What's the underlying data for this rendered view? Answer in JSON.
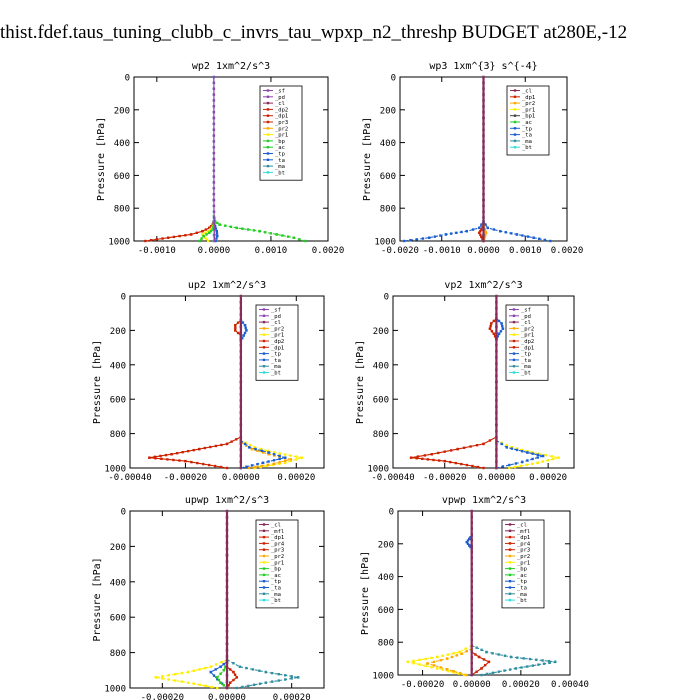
{
  "page_title": "thist.fdef.taus_tuning_clubb_c_invrs_tau_wpxp_n2_threshp  BUDGET at280E,-12",
  "colors": {
    "_sf": "#8e44ad",
    "_pd": "#8e44ad",
    "_cl": "#8b2b5a",
    "_mfl": "#8b2b5a",
    "_dp1": "#cc2200",
    "_dp2": "#cc2200",
    "_pr4": "#cc2200",
    "_pr3": "#cc2200",
    "_pr2": "#ffaa00",
    "_pr1": "#ffee00",
    "_bp": "#22cc22",
    "_ac": "#22cc22",
    "_tp": "#1a5fd1",
    "_ta": "#1a5fd1",
    "_ma": "#2f8fa0",
    "_bt": "#33dddd"
  },
  "chart_data": [
    {
      "type": "line",
      "title": "wp2  1xm^2/s^3",
      "ylabel": "Pressure  [hPa]",
      "xlim": [
        -0.0014,
        0.002
      ],
      "ylim": [
        1000,
        0
      ],
      "xticks": [
        -0.001,
        0,
        0.001,
        0.002
      ],
      "xtick_labels": [
        "-0.0010",
        "0.0000",
        "0.0010",
        "0.0020"
      ],
      "yticks": [
        0,
        200,
        400,
        600,
        800,
        1000
      ],
      "yticks_labels": [
        "0",
        "200",
        "400",
        "600",
        "800",
        "1000"
      ],
      "legend": [
        "_sf",
        "_pd",
        "_cl",
        "_dp2",
        "_dp1",
        "_pr3",
        "_pr2",
        "_pr1",
        "_bp",
        "_ac",
        "_tp",
        "_ta",
        "_ma",
        "_bt"
      ],
      "legend_position": "top-right",
      "series": [
        {
          "name": "_bp",
          "x": [
            0,
            2e-05,
            0.0001,
            0.0004,
            0.0008,
            0.0011,
            0.0014,
            0.0016
          ],
          "y": [
            850,
            880,
            900,
            920,
            940,
            960,
            980,
            1000
          ]
        },
        {
          "name": "_dp1",
          "x": [
            0,
            -2e-05,
            -8e-05,
            -0.0002,
            -0.0004,
            -0.0008,
            -0.0012
          ],
          "y": [
            880,
            900,
            920,
            940,
            960,
            980,
            1000
          ]
        },
        {
          "name": "_pr1",
          "x": [
            0,
            -3e-05,
            -0.0001,
            -0.0002,
            -0.00015,
            -0.0001
          ],
          "y": [
            900,
            920,
            940,
            960,
            980,
            1000
          ]
        },
        {
          "name": "_ac",
          "x": [
            0,
            -2e-05,
            -8e-05,
            -0.00018,
            -0.00025
          ],
          "y": [
            900,
            930,
            950,
            970,
            1000
          ]
        },
        {
          "name": "_tp",
          "x": [
            0,
            2e-05,
            5e-05,
            6e-05,
            3e-05
          ],
          "y": [
            880,
            910,
            940,
            970,
            1000
          ]
        },
        {
          "name": "_bt",
          "x": [
            0,
            0,
            0,
            0,
            0
          ],
          "y": [
            0,
            250,
            500,
            750,
            1000
          ]
        },
        {
          "name": "_sf",
          "x": [
            0,
            0,
            0,
            0,
            1e-05
          ],
          "y": [
            0,
            250,
            500,
            750,
            1000
          ]
        }
      ]
    },
    {
      "type": "line",
      "title": "wp3  1xm^{3} s^{-4}",
      "ylabel": "Pressure  [hPa]",
      "xlim": [
        -0.002,
        0.002
      ],
      "ylim": [
        1000,
        0
      ],
      "xticks": [
        -0.002,
        -0.001,
        0,
        0.001,
        0.002
      ],
      "xtick_labels": [
        "-0.0020",
        "-0.0010",
        "0.0000",
        "0.0010",
        "0.0020"
      ],
      "yticks": [
        0,
        200,
        400,
        600,
        800,
        1000
      ],
      "yticks_labels": [
        "0",
        "200",
        "400",
        "600",
        "800",
        "1000"
      ],
      "legend": [
        "_cl",
        "_dp1",
        "_pr2",
        "_pr1",
        "_bp1",
        "_ac",
        "_tp",
        "_ta",
        "_ma",
        "_bt"
      ],
      "legend_position": "top-right",
      "series": [
        {
          "name": "_ta",
          "x": [
            0,
            -0.0001,
            -0.0004,
            -0.0009,
            -0.0013,
            -0.0019
          ],
          "y": [
            880,
            920,
            940,
            960,
            980,
            1000
          ]
        },
        {
          "name": "_tp",
          "x": [
            0,
            0.0001,
            0.0004,
            0.0008,
            0.0012,
            0.0016
          ],
          "y": [
            880,
            920,
            940,
            960,
            980,
            1000
          ]
        },
        {
          "name": "_dp1",
          "x": [
            0,
            -5e-05,
            -0.0001,
            -5e-05,
            0
          ],
          "y": [
            900,
            930,
            950,
            975,
            1000
          ]
        },
        {
          "name": "_pr2",
          "x": [
            0,
            3e-05,
            6e-05,
            3e-05,
            0
          ],
          "y": [
            900,
            930,
            950,
            975,
            1000
          ]
        },
        {
          "name": "_bt",
          "x": [
            0,
            0,
            0,
            0,
            0
          ],
          "y": [
            0,
            250,
            500,
            750,
            1000
          ]
        },
        {
          "name": "_cl",
          "x": [
            0,
            0,
            0,
            0,
            0
          ],
          "y": [
            0,
            250,
            500,
            750,
            1000
          ]
        }
      ]
    },
    {
      "type": "line",
      "title": "up2  1xm^2/s^3",
      "ylabel": "Pressure  [hPa]",
      "xlim": [
        -0.0004,
        0.0003
      ],
      "ylim": [
        1000,
        0
      ],
      "xticks": [
        -0.0004,
        -0.0002,
        0,
        0.0002
      ],
      "xtick_labels": [
        "-0.00040",
        "-0.00020",
        "0.00000",
        "0.00020"
      ],
      "yticks": [
        0,
        200,
        400,
        600,
        800,
        1000
      ],
      "yticks_labels": [
        "0",
        "200",
        "400",
        "600",
        "800",
        "1000"
      ],
      "legend": [
        "_sf",
        "_pd",
        "_cl",
        "_pr2",
        "_pr1",
        "_dp2",
        "_dp1",
        "_tp",
        "_ta",
        "_ma",
        "_bt"
      ],
      "legend_position": "top-right",
      "series": [
        {
          "name": "_dp1",
          "x": [
            0,
            -5e-05,
            -0.00015,
            -0.00025,
            -0.00033,
            -0.0002,
            -5e-05
          ],
          "y": [
            820,
            860,
            890,
            920,
            940,
            960,
            1000
          ]
        },
        {
          "name": "_pr1",
          "x": [
            0,
            5e-05,
            0.00012,
            0.00022,
            0.00016,
            5e-05
          ],
          "y": [
            840,
            880,
            910,
            940,
            970,
            1000
          ]
        },
        {
          "name": "_pr2",
          "x": [
            0,
            4e-05,
            0.0001,
            0.00018,
            0.00012,
            3e-05
          ],
          "y": [
            850,
            890,
            920,
            950,
            975,
            1000
          ]
        },
        {
          "name": "_tp",
          "x": [
            0,
            3e-05,
            0.0001,
            0.00016,
            8e-05,
            0
          ],
          "y": [
            840,
            880,
            910,
            940,
            970,
            1000
          ]
        },
        {
          "name": "_dp2",
          "x": [
            0,
            -2e-05,
            -2e-05,
            0,
            0
          ],
          "y": [
            140,
            170,
            200,
            230,
            260
          ]
        },
        {
          "name": "_ta",
          "x": [
            0,
            1.5e-05,
            2e-05,
            1e-05,
            0
          ],
          "y": [
            140,
            170,
            200,
            230,
            260
          ]
        },
        {
          "name": "_bt",
          "x": [
            0,
            0,
            0,
            0,
            0
          ],
          "y": [
            0,
            250,
            500,
            750,
            1000
          ]
        },
        {
          "name": "_cl",
          "x": [
            0,
            0,
            0,
            0,
            0
          ],
          "y": [
            0,
            250,
            500,
            750,
            1000
          ]
        }
      ]
    },
    {
      "type": "line",
      "title": "vp2  1xm^2/s^3",
      "ylabel": "Pressure  [hPa]",
      "xlim": [
        -0.0004,
        0.0003
      ],
      "ylim": [
        1000,
        0
      ],
      "xticks": [
        -0.0004,
        -0.0002,
        0,
        0.0002
      ],
      "xtick_labels": [
        "-0.00040",
        "-0.00020",
        "0.00000",
        "0.00020"
      ],
      "yticks": [
        0,
        200,
        400,
        600,
        800,
        1000
      ],
      "yticks_labels": [
        "0",
        "200",
        "400",
        "600",
        "800",
        "1000"
      ],
      "legend": [
        "_sf",
        "_pd",
        "_cl",
        "_pr2",
        "_pr1",
        "_dp2",
        "_dp1",
        "_tp",
        "_ta",
        "_ma",
        "_bt"
      ],
      "legend_position": "top-right",
      "series": [
        {
          "name": "_dp1",
          "x": [
            0,
            -5e-05,
            -0.00015,
            -0.00025,
            -0.00033,
            -0.0002,
            -5e-05
          ],
          "y": [
            820,
            860,
            890,
            920,
            940,
            960,
            1000
          ]
        },
        {
          "name": "_pr1",
          "x": [
            0,
            6e-05,
            0.00014,
            0.00024,
            0.00016,
            5e-05
          ],
          "y": [
            840,
            880,
            910,
            940,
            970,
            1000
          ]
        },
        {
          "name": "_tp",
          "x": [
            0,
            4e-05,
            0.00012,
            0.00018,
            0.0001,
            0
          ],
          "y": [
            840,
            880,
            910,
            930,
            965,
            1000
          ]
        },
        {
          "name": "_dp2",
          "x": [
            0,
            -2e-05,
            -2.5e-05,
            -1e-05,
            0
          ],
          "y": [
            130,
            160,
            190,
            220,
            250
          ]
        },
        {
          "name": "_tp",
          "x": [
            0,
            2e-05,
            2.5e-05,
            1e-05,
            0
          ],
          "y": [
            130,
            160,
            190,
            220,
            250
          ]
        },
        {
          "name": "_bt",
          "x": [
            0,
            0,
            0,
            0,
            0
          ],
          "y": [
            0,
            250,
            500,
            750,
            1000
          ]
        },
        {
          "name": "_cl",
          "x": [
            0,
            0,
            0,
            0,
            0
          ],
          "y": [
            0,
            250,
            500,
            750,
            1000
          ]
        }
      ]
    },
    {
      "type": "line",
      "title": "upwp  1xm^2/s^3",
      "ylabel": "Pressure  [hPa]",
      "xlim": [
        -0.0003,
        0.0003
      ],
      "ylim": [
        1000,
        0
      ],
      "xticks": [
        -0.0002,
        0,
        0.0002
      ],
      "xtick_labels": [
        "-0.00020",
        "0.00000",
        "0.00020"
      ],
      "yticks": [
        0,
        200,
        400,
        600,
        800,
        1000
      ],
      "yticks_labels": [
        "0",
        "200",
        "400",
        "600",
        "800",
        "1000"
      ],
      "legend": [
        "_cl",
        "_mfl",
        "_dp1",
        "_pr4",
        "_pr3",
        "_pr2",
        "_pr1",
        "_bp",
        "_ac",
        "_tp",
        "_ta",
        "_ma",
        "_bt"
      ],
      "legend_position": "top-right",
      "series": [
        {
          "name": "_pr1",
          "x": [
            0,
            -5e-05,
            -0.00012,
            -0.00022,
            -0.00012,
            -3e-05
          ],
          "y": [
            840,
            880,
            910,
            940,
            970,
            1000
          ]
        },
        {
          "name": "_ma",
          "x": [
            0,
            4e-05,
            0.00012,
            0.00022,
            0.00012,
            3e-05
          ],
          "y": [
            840,
            880,
            910,
            940,
            970,
            1000
          ]
        },
        {
          "name": "_tp",
          "x": [
            0,
            -2e-05,
            -5e-05,
            -3e-05,
            0
          ],
          "y": [
            850,
            880,
            910,
            950,
            1000
          ]
        },
        {
          "name": "_ac",
          "x": [
            0,
            -1e-05,
            -3e-05,
            -2e-05,
            0
          ],
          "y": [
            860,
            900,
            940,
            970,
            1000
          ]
        },
        {
          "name": "_pr3",
          "x": [
            0,
            2e-05,
            3e-05,
            1e-05,
            0
          ],
          "y": [
            880,
            910,
            940,
            970,
            1000
          ]
        },
        {
          "name": "_bt",
          "x": [
            0,
            0,
            0,
            0,
            0
          ],
          "y": [
            0,
            250,
            500,
            750,
            1000
          ]
        },
        {
          "name": "_cl",
          "x": [
            0,
            0,
            0,
            0,
            0
          ],
          "y": [
            0,
            250,
            500,
            750,
            1000
          ]
        }
      ]
    },
    {
      "type": "line",
      "title": "vpwp  1xm^2/s^3",
      "ylabel": "Pressure  [hPa]",
      "xlim": [
        -0.0003,
        0.0004
      ],
      "ylim": [
        1000,
        0
      ],
      "xticks": [
        -0.0002,
        0,
        0.0002,
        0.0004
      ],
      "xtick_labels": [
        "-0.00020",
        "0.00000",
        "0.00020",
        "0.00040"
      ],
      "yticks": [
        0,
        200,
        400,
        600,
        800,
        1000
      ],
      "yticks_labels": [
        "0",
        "200",
        "400",
        "600",
        "800",
        "1000"
      ],
      "legend": [
        "_cl",
        "_mfl",
        "_dp1",
        "_pr4",
        "_pr3",
        "_pr2",
        "_pr1",
        "_bp",
        "_ac",
        "_tp",
        "_ta",
        "_ma",
        "_bt"
      ],
      "legend_position": "top-right",
      "series": [
        {
          "name": "_pr1",
          "x": [
            0,
            -5e-05,
            -0.00014,
            -0.00026,
            -0.00014,
            -3e-05
          ],
          "y": [
            820,
            860,
            890,
            920,
            960,
            1000
          ]
        },
        {
          "name": "_ma",
          "x": [
            0,
            6e-05,
            0.00016,
            0.00034,
            0.00018,
            4e-05
          ],
          "y": [
            820,
            860,
            890,
            920,
            960,
            1000
          ]
        },
        {
          "name": "_pr2",
          "x": [
            0,
            -4e-05,
            -0.0001,
            -0.00018,
            -0.0001,
            -2e-05
          ],
          "y": [
            840,
            870,
            900,
            930,
            965,
            1000
          ]
        },
        {
          "name": "_dp1",
          "x": [
            0,
            3e-05,
            7e-05,
            4e-05,
            0
          ],
          "y": [
            860,
            890,
            920,
            960,
            1000
          ]
        },
        {
          "name": "_tp",
          "x": [
            0,
            -1e-05,
            -2e-05,
            -1e-05,
            0
          ],
          "y": [
            150,
            170,
            190,
            210,
            230
          ]
        },
        {
          "name": "_bt",
          "x": [
            0,
            0,
            0,
            0,
            0
          ],
          "y": [
            0,
            250,
            500,
            750,
            1000
          ]
        },
        {
          "name": "_cl",
          "x": [
            0,
            0,
            0,
            0,
            0
          ],
          "y": [
            0,
            250,
            500,
            750,
            1000
          ]
        }
      ]
    }
  ]
}
